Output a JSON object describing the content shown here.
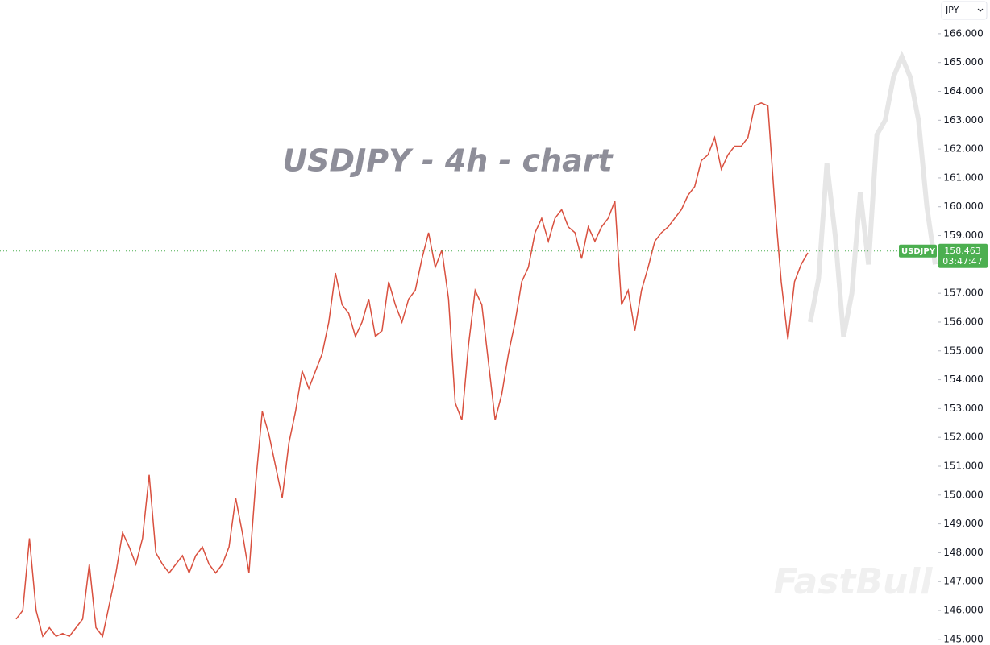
{
  "chart_data": {
    "type": "line",
    "title": "USDJPY - 4h - chart",
    "symbol": "USDJPY",
    "currency": "JPY",
    "watermark": "FastBull",
    "last_price": 158.463,
    "countdown": "03:47:47",
    "ylim": [
      144.8,
      167.17
    ],
    "yticks": [
      {
        "value": 145,
        "label": "145.000"
      },
      {
        "value": 146,
        "label": "146.000"
      },
      {
        "value": 147,
        "label": "147.000"
      },
      {
        "value": 148,
        "label": "148.000"
      },
      {
        "value": 149,
        "label": "149.000"
      },
      {
        "value": 150,
        "label": "150.000"
      },
      {
        "value": 151,
        "label": "151.000"
      },
      {
        "value": 152,
        "label": "152.000"
      },
      {
        "value": 153,
        "label": "153.000"
      },
      {
        "value": 154,
        "label": "154.000"
      },
      {
        "value": 155,
        "label": "155.000"
      },
      {
        "value": 156,
        "label": "156.000"
      },
      {
        "value": 157,
        "label": "157.000"
      },
      {
        "value": 158,
        "label": "158.000"
      },
      {
        "value": 159,
        "label": "159.000"
      },
      {
        "value": 160,
        "label": "160.000"
      },
      {
        "value": 161,
        "label": "161.000"
      },
      {
        "value": 162,
        "label": "162.000"
      },
      {
        "value": 163,
        "label": "163.000"
      },
      {
        "value": 164,
        "label": "164.000"
      },
      {
        "value": 165,
        "label": "165.000"
      },
      {
        "value": 166,
        "label": "166.000"
      }
    ],
    "series": [
      {
        "color": "#d9503f",
        "values": [
          145.7,
          146.0,
          148.5,
          146.0,
          145.1,
          145.4,
          145.1,
          145.2,
          145.1,
          145.4,
          145.7,
          147.6,
          145.4,
          145.1,
          146.2,
          147.3,
          148.7,
          148.2,
          147.6,
          148.5,
          150.7,
          148.0,
          147.6,
          147.3,
          147.6,
          147.9,
          147.3,
          147.9,
          148.2,
          147.6,
          147.3,
          147.6,
          148.2,
          149.9,
          148.7,
          147.3,
          150.4,
          152.9,
          152.1,
          151.0,
          149.9,
          151.8,
          152.9,
          154.3,
          153.7,
          154.3,
          154.9,
          156.0,
          157.7,
          156.6,
          156.3,
          155.5,
          156.0,
          156.8,
          155.5,
          155.7,
          157.4,
          156.6,
          156.0,
          156.8,
          157.1,
          158.2,
          159.1,
          157.9,
          158.5,
          156.8,
          153.2,
          152.6,
          155.2,
          157.1,
          156.6,
          154.6,
          152.6,
          153.5,
          154.9,
          156.0,
          157.4,
          157.9,
          159.1,
          159.6,
          158.8,
          159.6,
          159.9,
          159.3,
          159.1,
          158.2,
          159.3,
          158.8,
          159.3,
          159.6,
          160.2,
          156.6,
          157.1,
          155.7,
          157.1,
          157.9,
          158.8,
          159.1,
          159.3,
          159.6,
          159.9,
          160.4,
          160.7,
          161.6,
          161.8,
          162.4,
          161.3,
          161.8,
          162.1,
          162.1,
          162.4,
          163.5,
          163.6,
          163.5,
          160.2,
          157.4,
          155.4,
          157.4,
          158.0,
          158.4
        ]
      },
      {
        "color": "#e6e6e6",
        "values": [
          156.0,
          157.5,
          161.5,
          159.0,
          155.5,
          157.0,
          160.5,
          158.0,
          162.5,
          163.0,
          164.5,
          165.2,
          164.5,
          163.0,
          160.0,
          158.0
        ]
      }
    ]
  }
}
